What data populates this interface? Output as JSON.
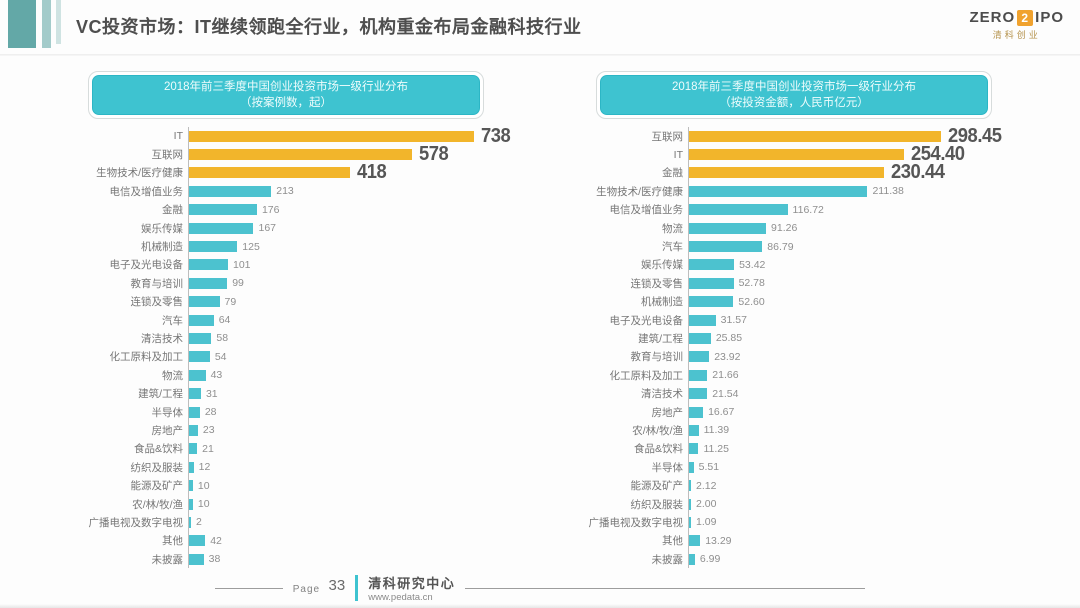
{
  "header": {
    "title": "VC投资市场：IT继续领跑全行业，机构重金布局金融科技行业",
    "logo": {
      "zero": "ZERO",
      "two": "2",
      "ipo": "IPO",
      "sub": "清科创业"
    }
  },
  "footer": {
    "page_label": "Page",
    "page_number": "33",
    "org": "清科研究中心",
    "url": "www.pedata.cn"
  },
  "colors": {
    "accent_teal": "#3EC3D0",
    "bar_teal": "#4CC2CF",
    "bar_gold": "#F2B52B",
    "deco_teal_dark": "#63A8A7",
    "deco_teal_mid": "#A3CBCA",
    "deco_teal_light": "#CFE3E2",
    "logo_orange": "#F0A22E",
    "value_big_gray": "#565656",
    "value_small_gray": "#8F8F8F"
  },
  "chart_data": [
    {
      "type": "bar",
      "orientation": "horizontal",
      "title": "2018年前三季度中国创业投资市场一级行业分布",
      "subtitle": "（按案例数，起）",
      "grid": false,
      "legend": "none",
      "highlight_top": 3,
      "xlim": [
        0,
        780
      ],
      "categories": [
        "IT",
        "互联网",
        "生物技术/医疗健康",
        "电信及增值业务",
        "金融",
        "娱乐传媒",
        "机械制造",
        "电子及光电设备",
        "教育与培训",
        "连锁及零售",
        "汽车",
        "清洁技术",
        "化工原料及加工",
        "物流",
        "建筑/工程",
        "半导体",
        "房地产",
        "食品&饮料",
        "纺织及服装",
        "能源及矿产",
        "农/林/牧/渔",
        "广播电视及数字电视",
        "其他",
        "未披露"
      ],
      "values": [
        738,
        578,
        418,
        213,
        176,
        167,
        125,
        101,
        99,
        79,
        64,
        58,
        54,
        43,
        31,
        28,
        23,
        21,
        12,
        10,
        10,
        2,
        42,
        38
      ],
      "value_labels": [
        "738",
        "578",
        "418",
        "213",
        "176",
        "167",
        "125",
        "101",
        "99",
        "79",
        "64",
        "58",
        "54",
        "43",
        "31",
        "28",
        "23",
        "21",
        "12",
        "10",
        "10",
        "2",
        "42",
        "38"
      ]
    },
    {
      "type": "bar",
      "orientation": "horizontal",
      "title": "2018年前三季度中国创业投资市场一级行业分布",
      "subtitle": "（按投资金额，人民币亿元）",
      "grid": false,
      "legend": "none",
      "highlight_top": 3,
      "xlim": [
        0,
        320
      ],
      "categories": [
        "互联网",
        "IT",
        "金融",
        "生物技术/医疗健康",
        "电信及增值业务",
        "物流",
        "汽车",
        "娱乐传媒",
        "连锁及零售",
        "机械制造",
        "电子及光电设备",
        "建筑/工程",
        "教育与培训",
        "化工原料及加工",
        "清洁技术",
        "房地产",
        "农/林/牧/渔",
        "食品&饮料",
        "半导体",
        "能源及矿产",
        "纺织及服装",
        "广播电视及数字电视",
        "其他",
        "未披露"
      ],
      "values": [
        298.45,
        254.4,
        230.44,
        211.38,
        116.72,
        91.26,
        86.79,
        53.42,
        52.78,
        52.6,
        31.57,
        25.85,
        23.92,
        21.66,
        21.54,
        16.67,
        11.39,
        11.25,
        5.51,
        2.12,
        2.0,
        1.09,
        13.29,
        6.99
      ],
      "value_labels": [
        "298.45",
        "254.40",
        "230.44",
        "211.38",
        "116.72",
        "91.26",
        "86.79",
        "53.42",
        "52.78",
        "52.60",
        "31.57",
        "25.85",
        "23.92",
        "21.66",
        "21.54",
        "16.67",
        "11.39",
        "11.25",
        "5.51",
        "2.12",
        "2.00",
        "1.09",
        "13.29",
        "6.99"
      ]
    }
  ]
}
